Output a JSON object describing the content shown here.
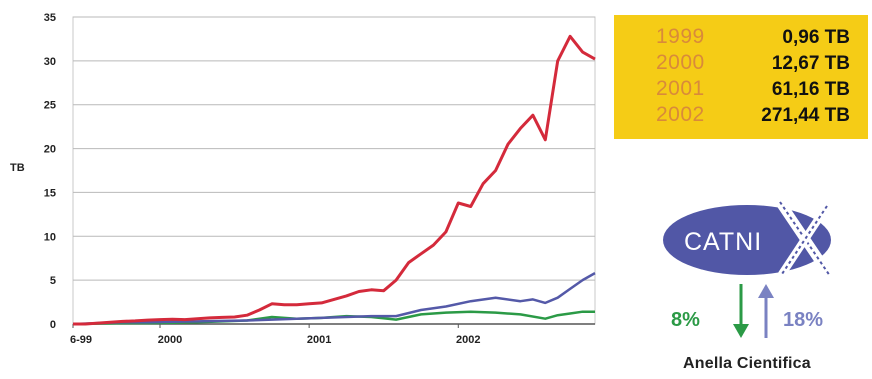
{
  "chart_data": {
    "type": "line",
    "ylabel": "TB",
    "ylim": [
      0,
      35
    ],
    "yticks": [
      0,
      5,
      10,
      15,
      20,
      25,
      30,
      35
    ],
    "xlim": [
      0,
      42
    ],
    "xticks": [
      {
        "x": 0,
        "label": "6-99"
      },
      {
        "x": 7,
        "label": "2000"
      },
      {
        "x": 19,
        "label": "2001"
      },
      {
        "x": 31,
        "label": "2002"
      }
    ],
    "grid": true,
    "series": [
      {
        "key": "red",
        "color": "#d42a3b",
        "x": [
          0,
          1,
          2,
          3,
          4,
          5,
          6,
          7,
          8,
          9,
          10,
          11,
          12,
          13,
          14,
          15,
          16,
          17,
          18,
          19,
          20,
          21,
          22,
          23,
          24,
          25,
          26,
          27,
          28,
          29,
          30,
          31,
          32,
          33,
          34,
          35,
          36,
          37,
          38,
          39,
          40,
          41,
          42
        ],
        "y": [
          0,
          0,
          0.1,
          0.2,
          0.3,
          0.35,
          0.45,
          0.5,
          0.55,
          0.5,
          0.6,
          0.7,
          0.75,
          0.8,
          1.0,
          1.6,
          2.3,
          2.2,
          2.2,
          2.3,
          2.4,
          2.8,
          3.2,
          3.7,
          3.9,
          3.8,
          5.0,
          7.0,
          8.0,
          9.0,
          10.5,
          13.8,
          13.4,
          16.0,
          17.5,
          20.5,
          22.3,
          23.8,
          21.0,
          30.0,
          32.8,
          31.0,
          30.2
        ]
      },
      {
        "key": "blue",
        "color": "#5459a8",
        "x": [
          0,
          2,
          4,
          6,
          8,
          10,
          12,
          14,
          16,
          18,
          20,
          22,
          24,
          26,
          28,
          30,
          32,
          34,
          36,
          37,
          38,
          39,
          40,
          41,
          42
        ],
        "y": [
          0,
          0.1,
          0.2,
          0.2,
          0.25,
          0.3,
          0.35,
          0.4,
          0.5,
          0.6,
          0.7,
          0.8,
          0.9,
          0.9,
          1.6,
          2.0,
          2.6,
          3.0,
          2.6,
          2.8,
          2.4,
          3.0,
          4.0,
          5.0,
          5.8
        ]
      },
      {
        "key": "green",
        "color": "#2b9a46",
        "x": [
          0,
          2,
          4,
          6,
          8,
          10,
          12,
          14,
          16,
          18,
          20,
          22,
          24,
          26,
          28,
          30,
          32,
          34,
          36,
          38,
          39,
          40,
          41,
          42
        ],
        "y": [
          0,
          0.05,
          0.1,
          0.1,
          0.15,
          0.2,
          0.3,
          0.4,
          0.8,
          0.6,
          0.7,
          0.9,
          0.8,
          0.5,
          1.1,
          1.3,
          1.4,
          1.3,
          1.1,
          0.6,
          1.0,
          1.2,
          1.4,
          1.4
        ]
      }
    ]
  },
  "totals": [
    {
      "year": "1999",
      "value": "0,96 TB"
    },
    {
      "year": "2000",
      "value": "12,67 TB"
    },
    {
      "year": "2001",
      "value": "61,16 TB"
    },
    {
      "year": "2002",
      "value": "271,44 TB"
    }
  ],
  "logo": {
    "text": "CATNI",
    "mark": "X",
    "icon": "catnix-logo"
  },
  "traffic": {
    "out_pct": "8%",
    "in_pct": "18%",
    "out_color": "#2b9a46",
    "in_color": "#7a82c2",
    "out_icon": "arrow-down-icon",
    "in_icon": "arrow-up-icon"
  },
  "caption": "Anella Cientifica"
}
